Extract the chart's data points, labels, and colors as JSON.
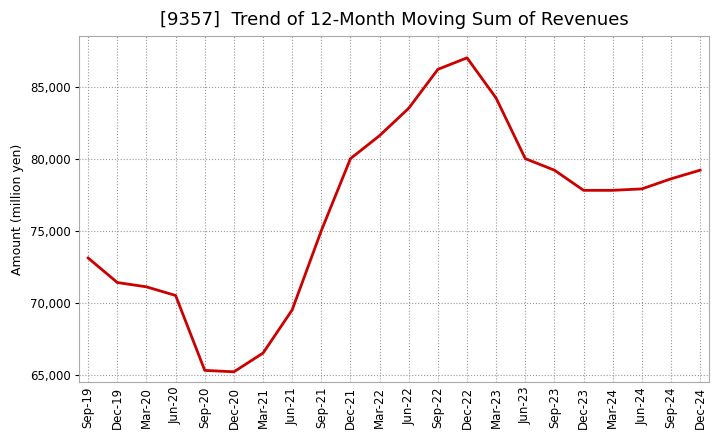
{
  "title": "[9357]  Trend of 12-Month Moving Sum of Revenues",
  "ylabel": "Amount (million yen)",
  "line_color": "#cc0000",
  "line_width": 2.0,
  "background_color": "#ffffff",
  "plot_background": "#ffffff",
  "grid_color": "#999999",
  "x_labels": [
    "Sep-19",
    "Dec-19",
    "Mar-20",
    "Jun-20",
    "Sep-20",
    "Dec-20",
    "Mar-21",
    "Jun-21",
    "Sep-21",
    "Dec-21",
    "Mar-22",
    "Jun-22",
    "Sep-22",
    "Dec-22",
    "Mar-23",
    "Jun-23",
    "Sep-23",
    "Dec-23",
    "Mar-24",
    "Jun-24",
    "Sep-24",
    "Dec-24"
  ],
  "y_values": [
    73100,
    71400,
    71100,
    70500,
    65300,
    65200,
    66500,
    69500,
    75000,
    80000,
    81600,
    83500,
    86200,
    87000,
    84200,
    80000,
    79200,
    77800,
    77800,
    77900,
    78600,
    79200
  ],
  "ylim_min": 64500,
  "ylim_max": 88500,
  "yticks": [
    65000,
    70000,
    75000,
    80000,
    85000
  ],
  "title_fontsize": 13,
  "axis_fontsize": 9,
  "tick_fontsize": 8.5
}
